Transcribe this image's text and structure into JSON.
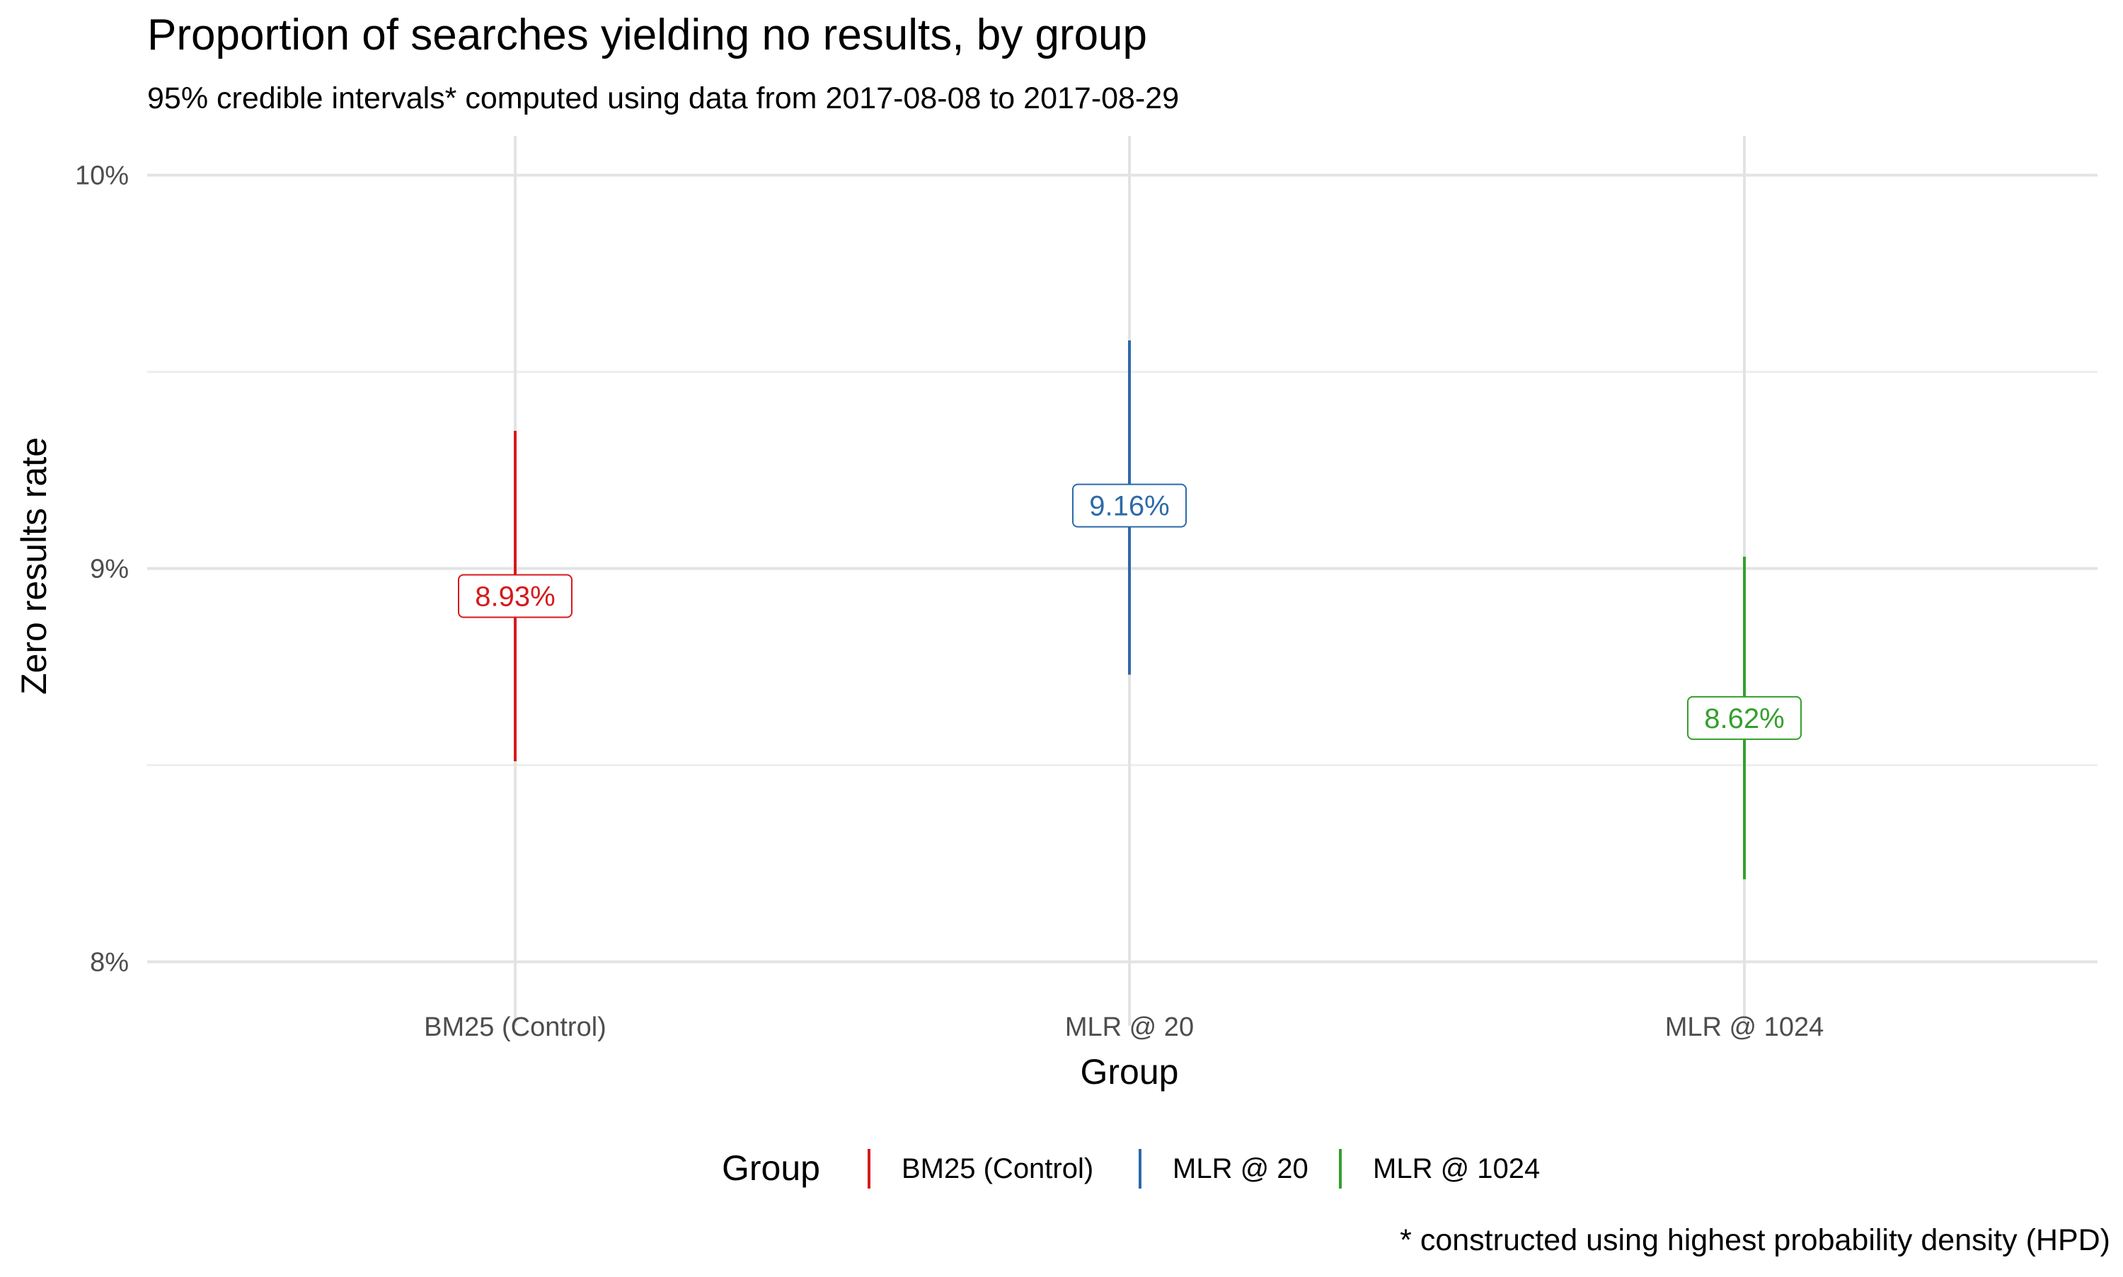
{
  "chart_data": {
    "type": "errorbar",
    "title": "Proportion of searches yielding no results, by group",
    "subtitle": "95% credible intervals* computed using data from 2017-08-08 to 2017-08-29",
    "xlabel": "Group",
    "ylabel": "Zero results rate",
    "caption": "* constructed using highest probability density (HPD)",
    "ylim": [
      0.0792,
      0.101
    ],
    "y_ticks": [
      0.08,
      0.09,
      0.1
    ],
    "y_tick_labels": [
      "8%",
      "9%",
      "10%"
    ],
    "y_minor_ticks": [
      0.085,
      0.095
    ],
    "categories": [
      "BM25 (Control)",
      "MLR @ 20",
      "MLR @ 1024"
    ],
    "series": [
      {
        "name": "BM25 (Control)",
        "estimate": 0.0893,
        "lower": 0.0851,
        "upper": 0.0935,
        "label": "8.93%",
        "color": "#d7191c"
      },
      {
        "name": "MLR @ 20",
        "estimate": 0.0916,
        "lower": 0.0873,
        "upper": 0.0958,
        "label": "9.16%",
        "color": "#2c6aa8"
      },
      {
        "name": "MLR @ 1024",
        "estimate": 0.0862,
        "lower": 0.0821,
        "upper": 0.0903,
        "label": "8.62%",
        "color": "#33a02c"
      }
    ],
    "legend": {
      "title": "Group",
      "position": "bottom"
    },
    "grid": true
  }
}
